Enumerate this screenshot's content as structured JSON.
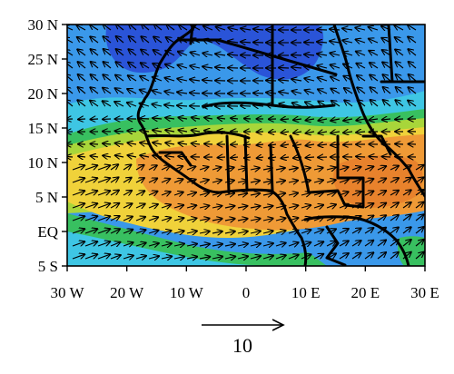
{
  "map": {
    "extent": {
      "lon": [
        -30,
        30
      ],
      "lat": [
        -5,
        30
      ]
    },
    "lat_ticks": [
      {
        "value": 30,
        "label": "30 N"
      },
      {
        "value": 25,
        "label": "25 N"
      },
      {
        "value": 20,
        "label": "20 N"
      },
      {
        "value": 15,
        "label": "15 N"
      },
      {
        "value": 10,
        "label": "10 N"
      },
      {
        "value": 5,
        "label": "5 N"
      },
      {
        "value": 0,
        "label": "EQ"
      },
      {
        "value": -5,
        "label": "5 S"
      }
    ],
    "lon_ticks": [
      {
        "value": -30,
        "label": "30 W"
      },
      {
        "value": -20,
        "label": "20 W"
      },
      {
        "value": -10,
        "label": "10 W"
      },
      {
        "value": 0,
        "label": "0"
      },
      {
        "value": 10,
        "label": "10 E"
      },
      {
        "value": 20,
        "label": "20 E"
      },
      {
        "value": 30,
        "label": "30 E"
      }
    ],
    "colors": {
      "dark_blue": "#2a54d8",
      "blue": "#3a98ea",
      "cyan": "#3ec6e4",
      "green": "#38c060",
      "yellow_green": "#a8d63a",
      "yellow": "#f0d23a",
      "orange": "#ef9a36",
      "dark_orange": "#e8822c"
    },
    "reference_vector": {
      "magnitude": 10,
      "label": "10"
    }
  }
}
